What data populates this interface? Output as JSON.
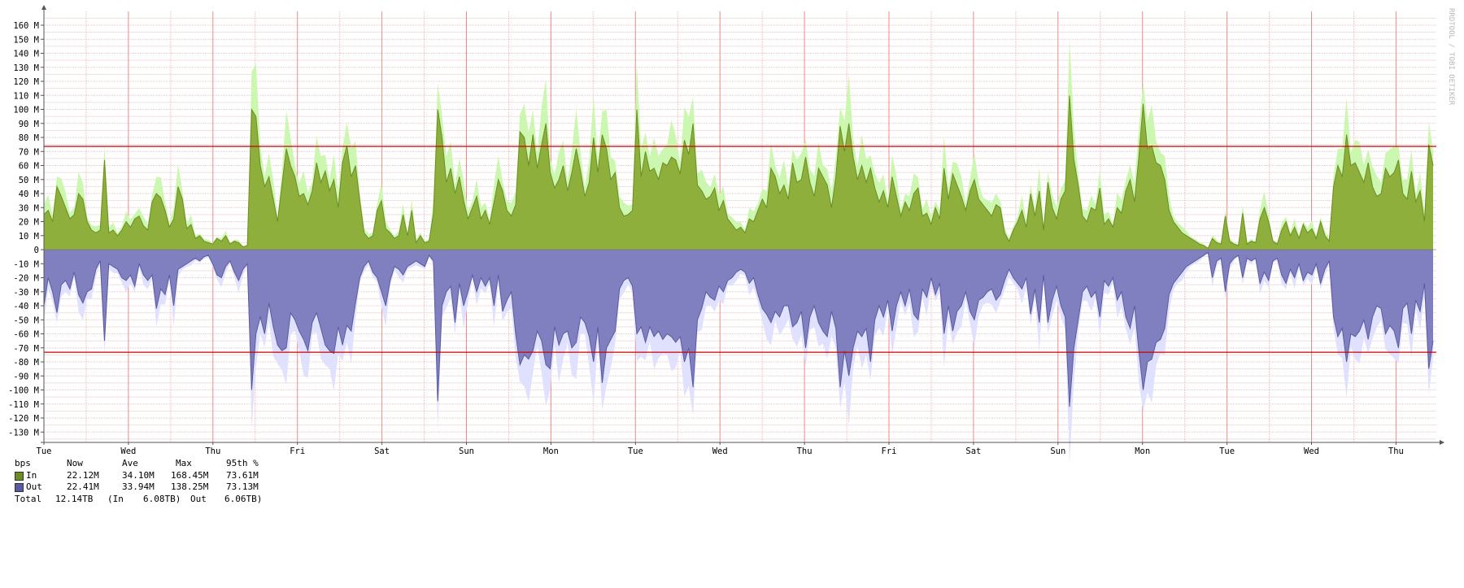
{
  "chart_data": {
    "type": "area",
    "credit": "RRDTOOL / TOBI OETIKER",
    "ylim": [
      -140,
      170
    ],
    "y_ticks": [
      160,
      150,
      140,
      130,
      120,
      110,
      100,
      90,
      80,
      70,
      60,
      50,
      40,
      30,
      20,
      10,
      0,
      -10,
      -20,
      -30,
      -40,
      -50,
      -60,
      -70,
      -80,
      -90,
      -100,
      -110,
      -120,
      -130
    ],
    "y_tick_labels": [
      "160 M",
      "150 M",
      "140 M",
      "130 M",
      "120 M",
      "110 M",
      "100 M",
      "90 M",
      "80 M",
      "70 M",
      "60 M",
      "50 M",
      "40 M",
      "30 M",
      "20 M",
      "10 M",
      "0",
      "-10 M",
      "-20 M",
      "-30 M",
      "-40 M",
      "-50 M",
      "-60 M",
      "-70 M",
      "-80 M",
      "-90 M",
      "-100 M",
      "-110 M",
      "-120 M",
      "-130 M"
    ],
    "x_ticks": [
      "Tue",
      "Wed",
      "Thu",
      "Fri",
      "Sat",
      "Sun",
      "Mon",
      "Tue",
      "Wed",
      "Thu",
      "Fri",
      "Sat",
      "Sun",
      "Mon",
      "Tue",
      "Wed",
      "Thu"
    ],
    "grid": true,
    "percentile_lines": {
      "in": 73.61,
      "out": -73.13
    },
    "series": [
      {
        "name": "In",
        "color": "#6b8e23",
        "fill": "#8faf3c",
        "max_fill": "#ccf7b0",
        "values": [
          25,
          28,
          20,
          45,
          38,
          30,
          22,
          25,
          40,
          36,
          20,
          14,
          12,
          14,
          64,
          12,
          14,
          10,
          14,
          20,
          16,
          22,
          24,
          17,
          14,
          34,
          40,
          37,
          28,
          16,
          22,
          45,
          36,
          15,
          18,
          8,
          10,
          6,
          5,
          4,
          8,
          6,
          10,
          4,
          6,
          5,
          2,
          3,
          100,
          95,
          60,
          45,
          52,
          36,
          20,
          46,
          72,
          60,
          52,
          38,
          40,
          32,
          42,
          62,
          48,
          56,
          42,
          50,
          30,
          62,
          74,
          52,
          60,
          35,
          12,
          8,
          10,
          28,
          35,
          15,
          12,
          8,
          10,
          25,
          10,
          28,
          5,
          10,
          5,
          6,
          26,
          100,
          80,
          48,
          58,
          40,
          52,
          35,
          22,
          30,
          38,
          22,
          28,
          18,
          34,
          50,
          42,
          28,
          24,
          32,
          84,
          80,
          60,
          82,
          58,
          75,
          90,
          55,
          44,
          50,
          60,
          42,
          55,
          72,
          56,
          38,
          48,
          80,
          55,
          82,
          72,
          50,
          55,
          30,
          24,
          25,
          28,
          100,
          52,
          70,
          56,
          58,
          50,
          62,
          60,
          66,
          64,
          54,
          78,
          68,
          90,
          46,
          42,
          36,
          38,
          44,
          28,
          35,
          22,
          18,
          14,
          16,
          12,
          22,
          20,
          28,
          36,
          30,
          58,
          52,
          40,
          46,
          36,
          62,
          48,
          50,
          66,
          48,
          38,
          58,
          52,
          46,
          30,
          52,
          88,
          70,
          90,
          66,
          50,
          60,
          48,
          58,
          44,
          34,
          42,
          30,
          52,
          38,
          24,
          34,
          28,
          40,
          44,
          24,
          26,
          18,
          30,
          22,
          58,
          36,
          54,
          46,
          38,
          28,
          42,
          50,
          36,
          32,
          28,
          24,
          32,
          30,
          12,
          6,
          14,
          20,
          28,
          16,
          40,
          24,
          42,
          14,
          48,
          30,
          22,
          36,
          42,
          110,
          64,
          46,
          24,
          20,
          30,
          28,
          44,
          18,
          22,
          16,
          30,
          26,
          42,
          50,
          34,
          66,
          104,
          72,
          74,
          62,
          60,
          50,
          28,
          20,
          16,
          12,
          10,
          8,
          6,
          4,
          3,
          1,
          8,
          5,
          4,
          24,
          6,
          4,
          3,
          26,
          4,
          6,
          5,
          22,
          30,
          20,
          6,
          4,
          14,
          20,
          10,
          16,
          8,
          18,
          12,
          15,
          8,
          20,
          10,
          6,
          45,
          60,
          52,
          82,
          60,
          62,
          55,
          48,
          62,
          45,
          38,
          40,
          58,
          52,
          55,
          64,
          40,
          36,
          56,
          34,
          42,
          20,
          75,
          60
        ]
      },
      {
        "name": "Out",
        "color": "#5a5aa0",
        "fill": "#8080c0",
        "max_fill": "#e0e0ff",
        "values": [
          -40,
          -20,
          -30,
          -45,
          -25,
          -22,
          -28,
          -16,
          -32,
          -38,
          -30,
          -28,
          -14,
          -8,
          -65,
          -10,
          -12,
          -14,
          -20,
          -22,
          -18,
          -26,
          -10,
          -18,
          -22,
          -18,
          -42,
          -28,
          -32,
          -18,
          -40,
          -14,
          -12,
          -10,
          -8,
          -6,
          -8,
          -5,
          -4,
          -10,
          -18,
          -20,
          -12,
          -8,
          -16,
          -22,
          -14,
          -10,
          -100,
          -60,
          -48,
          -60,
          -38,
          -55,
          -68,
          -72,
          -70,
          -45,
          -50,
          -58,
          -64,
          -72,
          -52,
          -45,
          -56,
          -68,
          -72,
          -74,
          -55,
          -68,
          -54,
          -58,
          -38,
          -20,
          -12,
          -8,
          -16,
          -20,
          -30,
          -40,
          -22,
          -12,
          -14,
          -18,
          -12,
          -10,
          -8,
          -10,
          -12,
          -4,
          -8,
          -108,
          -40,
          -30,
          -26,
          -52,
          -24,
          -40,
          -30,
          -18,
          -30,
          -20,
          -26,
          -20,
          -40,
          -18,
          -44,
          -36,
          -30,
          -60,
          -82,
          -75,
          -78,
          -72,
          -58,
          -65,
          -82,
          -85,
          -55,
          -68,
          -60,
          -58,
          -70,
          -66,
          -48,
          -52,
          -62,
          -80,
          -55,
          -95,
          -70,
          -64,
          -58,
          -28,
          -22,
          -20,
          -26,
          -60,
          -55,
          -66,
          -55,
          -62,
          -58,
          -64,
          -60,
          -62,
          -66,
          -62,
          -80,
          -70,
          -98,
          -50,
          -42,
          -30,
          -34,
          -36,
          -26,
          -30,
          -22,
          -20,
          -16,
          -14,
          -16,
          -24,
          -20,
          -32,
          -42,
          -46,
          -52,
          -44,
          -48,
          -40,
          -40,
          -55,
          -52,
          -44,
          -70,
          -48,
          -40,
          -52,
          -58,
          -62,
          -44,
          -56,
          -98,
          -72,
          -90,
          -70,
          -58,
          -62,
          -56,
          -80,
          -50,
          -40,
          -48,
          -36,
          -58,
          -40,
          -30,
          -40,
          -28,
          -46,
          -50,
          -28,
          -34,
          -20,
          -32,
          -24,
          -60,
          -40,
          -58,
          -44,
          -40,
          -30,
          -44,
          -50,
          -36,
          -34,
          -30,
          -28,
          -36,
          -32,
          -22,
          -14,
          -20,
          -24,
          -28,
          -20,
          -46,
          -28,
          -52,
          -18,
          -52,
          -36,
          -26,
          -40,
          -48,
          -112,
          -70,
          -50,
          -30,
          -26,
          -34,
          -30,
          -48,
          -22,
          -26,
          -20,
          -36,
          -30,
          -48,
          -56,
          -40,
          -72,
          -100,
          -80,
          -78,
          -66,
          -64,
          -56,
          -32,
          -24,
          -20,
          -16,
          -12,
          -10,
          -8,
          -6,
          -4,
          -2,
          -20,
          -8,
          -6,
          -30,
          -10,
          -6,
          -4,
          -20,
          -6,
          -8,
          -6,
          -24,
          -16,
          -22,
          -8,
          -6,
          -18,
          -24,
          -14,
          -20,
          -10,
          -22,
          -16,
          -18,
          -10,
          -24,
          -14,
          -8,
          -48,
          -62,
          -56,
          -80,
          -60,
          -62,
          -58,
          -50,
          -64,
          -48,
          -40,
          -42,
          -60,
          -54,
          -58,
          -70,
          -42,
          -38,
          -60,
          -36,
          -44,
          -24,
          -85,
          -65
        ]
      }
    ]
  },
  "legend": {
    "unit": "bps",
    "headers": [
      "Now",
      "Ave",
      "Max",
      "95th %"
    ],
    "rows": [
      {
        "name": "In",
        "color": "#6b8e23",
        "now": "22.12M",
        "ave": "34.10M",
        "max": "168.45M",
        "p95": "73.61M"
      },
      {
        "name": "Out",
        "color": "#6a6ab0",
        "now": "22.41M",
        "ave": "33.94M",
        "max": "138.25M",
        "p95": "73.13M"
      }
    ],
    "total": {
      "label": "Total",
      "value": "12.14TB",
      "in_label": "(In",
      "in_value": "6.08TB)",
      "out_label": "Out",
      "out_value": "6.06TB)"
    }
  }
}
